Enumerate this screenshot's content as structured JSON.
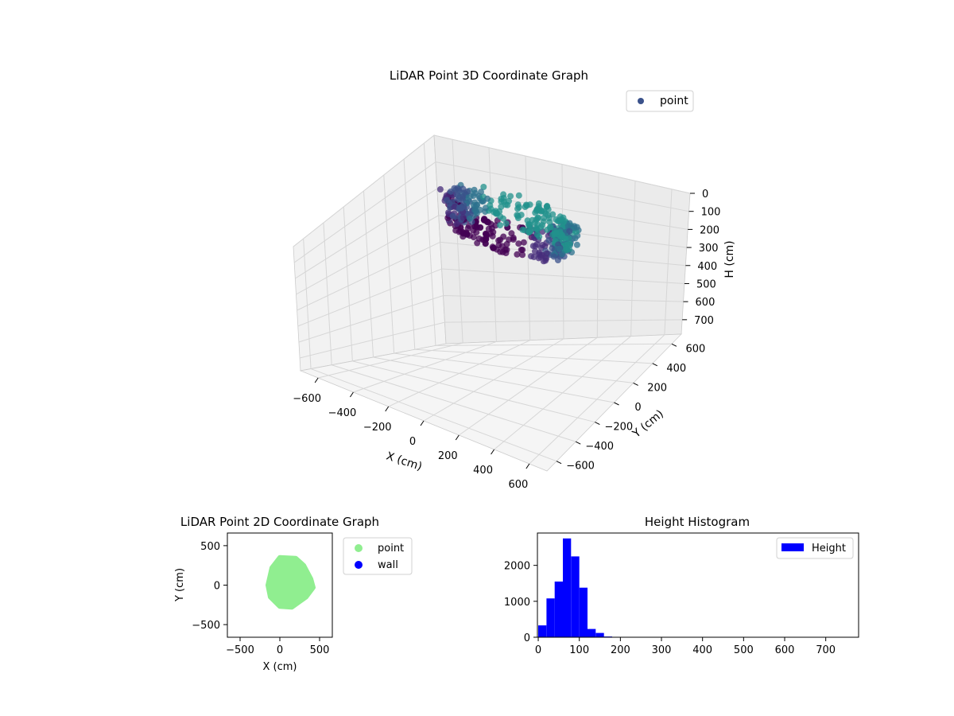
{
  "chart_data": [
    {
      "type": "scatter",
      "title": "LiDAR Point 3D Coordinate Graph",
      "xlabel": "X (cm)",
      "ylabel": "Y (cm)",
      "zlabel": "H (cm)",
      "xlim": [
        -700,
        700
      ],
      "ylim": [
        -700,
        700
      ],
      "zlim": [
        780,
        0
      ],
      "z_inverted": true,
      "x_ticks": [
        -600,
        -400,
        -200,
        0,
        200,
        400,
        600
      ],
      "y_ticks": [
        -600,
        -400,
        -200,
        0,
        200,
        400,
        600
      ],
      "z_ticks": [
        0,
        100,
        200,
        300,
        400,
        500,
        600,
        700
      ],
      "grid": true,
      "legend": {
        "location": "top-right",
        "entries": [
          "point"
        ]
      },
      "colormap": "viridis",
      "series": [
        {
          "name": "point",
          "color": "#3b528b",
          "description_rings": [
            {
              "radius": 330,
              "height_range": [
                20,
                80
              ]
            },
            {
              "radius": 300,
              "height_range": [
                80,
                140
              ]
            }
          ],
          "center": [
            60,
            20
          ]
        }
      ]
    },
    {
      "type": "scatter",
      "title": "LiDAR Point 2D Coordinate Graph",
      "xlabel": "X (cm)",
      "ylabel": "Y (cm)",
      "xlim": [
        -660,
        660
      ],
      "ylim": [
        -660,
        660
      ],
      "x_ticks": [
        -500,
        0,
        500
      ],
      "y_ticks": [
        -500,
        0,
        500
      ],
      "legend": {
        "location": "outside-right",
        "entries": [
          "point",
          "wall"
        ]
      },
      "series": [
        {
          "name": "point",
          "color": "#90ee90",
          "blob_outline": [
            [
              -150,
              0
            ],
            [
              -120,
              -150
            ],
            [
              0,
              -270
            ],
            [
              150,
              -280
            ],
            [
              330,
              -150
            ],
            [
              420,
              -30
            ],
            [
              390,
              80
            ],
            [
              300,
              250
            ],
            [
              200,
              340
            ],
            [
              0,
              350
            ],
            [
              -100,
              220
            ]
          ]
        },
        {
          "name": "wall",
          "color": "#0000ff",
          "points": []
        }
      ]
    },
    {
      "type": "bar",
      "title": "Height Histogram",
      "xlim": [
        -2,
        780
      ],
      "ylim": [
        0,
        2900
      ],
      "x_ticks": [
        0,
        100,
        200,
        300,
        400,
        500,
        600,
        700
      ],
      "y_ticks": [
        0,
        1000,
        2000
      ],
      "legend": {
        "location": "top-right",
        "entries": [
          "Height"
        ]
      },
      "series": [
        {
          "name": "Height",
          "color": "#0000ff",
          "bin_edges": [
            0,
            20,
            40,
            60,
            80,
            100,
            120,
            140,
            160,
            180,
            200
          ],
          "values": [
            330,
            1080,
            1550,
            2750,
            2250,
            1380,
            230,
            120,
            20,
            5
          ]
        }
      ]
    }
  ]
}
